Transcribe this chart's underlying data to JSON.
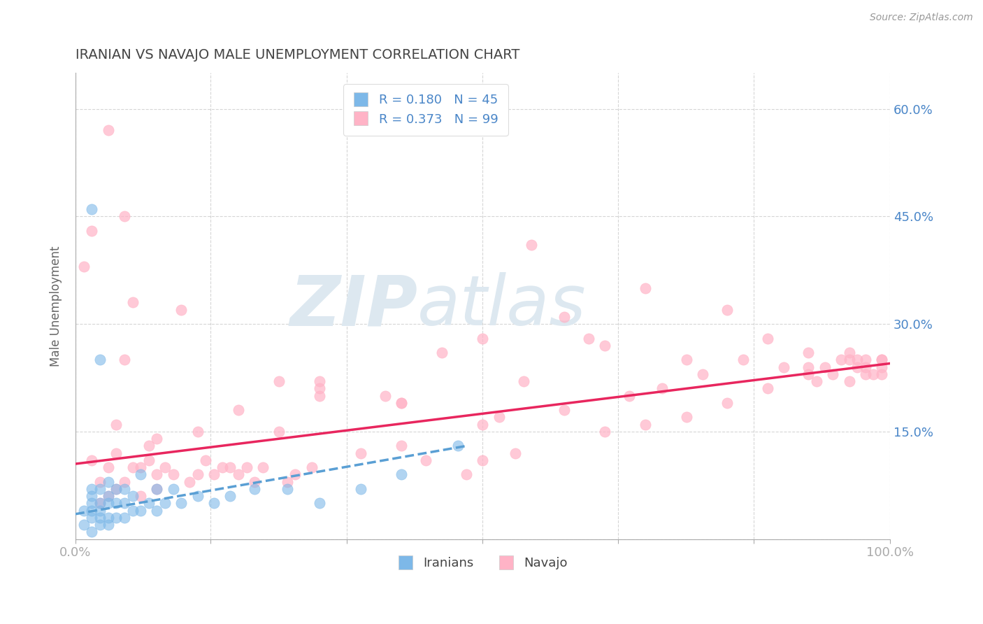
{
  "title": "IRANIAN VS NAVAJO MALE UNEMPLOYMENT CORRELATION CHART",
  "source_text": "Source: ZipAtlas.com",
  "ylabel": "Male Unemployment",
  "legend_R": [
    0.18,
    0.373
  ],
  "legend_N": [
    45,
    99
  ],
  "xlim": [
    0.0,
    1.0
  ],
  "ylim": [
    0.0,
    0.65
  ],
  "yticks": [
    0.0,
    0.15,
    0.3,
    0.45,
    0.6
  ],
  "ytick_labels_right": [
    "",
    "15.0%",
    "30.0%",
    "45.0%",
    "60.0%"
  ],
  "xticks": [
    0.0,
    0.166,
    0.333,
    0.5,
    0.666,
    0.833,
    1.0
  ],
  "xtick_left_label": "0.0%",
  "xtick_right_label": "100.0%",
  "background_color": "#ffffff",
  "grid_color": "#cccccc",
  "title_color": "#444444",
  "axis_label_color": "#666666",
  "tick_label_color": "#4a86c8",
  "iranian_color": "#7db8e8",
  "navajo_color": "#ffb3c6",
  "iranian_line_color": "#5a9fd4",
  "navajo_line_color": "#e8265e",
  "watermark_color": "#dde8f0",
  "watermark_text": "ZIPAtlas",
  "iranian_x": [
    0.01,
    0.01,
    0.02,
    0.02,
    0.02,
    0.02,
    0.02,
    0.02,
    0.03,
    0.03,
    0.03,
    0.03,
    0.03,
    0.04,
    0.04,
    0.04,
    0.04,
    0.04,
    0.05,
    0.05,
    0.05,
    0.06,
    0.06,
    0.06,
    0.07,
    0.07,
    0.08,
    0.08,
    0.09,
    0.1,
    0.1,
    0.11,
    0.12,
    0.13,
    0.15,
    0.17,
    0.19,
    0.22,
    0.26,
    0.3,
    0.35,
    0.4,
    0.47,
    0.02,
    0.03
  ],
  "iranian_y": [
    0.02,
    0.04,
    0.01,
    0.03,
    0.04,
    0.05,
    0.06,
    0.07,
    0.02,
    0.03,
    0.04,
    0.05,
    0.07,
    0.02,
    0.03,
    0.05,
    0.06,
    0.08,
    0.03,
    0.05,
    0.07,
    0.03,
    0.05,
    0.07,
    0.04,
    0.06,
    0.04,
    0.09,
    0.05,
    0.04,
    0.07,
    0.05,
    0.07,
    0.05,
    0.06,
    0.05,
    0.06,
    0.07,
    0.07,
    0.05,
    0.07,
    0.09,
    0.13,
    0.46,
    0.25
  ],
  "navajo_x": [
    0.01,
    0.02,
    0.02,
    0.03,
    0.03,
    0.04,
    0.04,
    0.05,
    0.05,
    0.06,
    0.06,
    0.07,
    0.07,
    0.08,
    0.08,
    0.09,
    0.09,
    0.1,
    0.1,
    0.11,
    0.12,
    0.13,
    0.14,
    0.15,
    0.16,
    0.17,
    0.18,
    0.19,
    0.2,
    0.21,
    0.22,
    0.23,
    0.25,
    0.26,
    0.27,
    0.29,
    0.3,
    0.35,
    0.38,
    0.4,
    0.43,
    0.45,
    0.48,
    0.5,
    0.52,
    0.54,
    0.56,
    0.6,
    0.63,
    0.65,
    0.68,
    0.7,
    0.72,
    0.75,
    0.77,
    0.8,
    0.82,
    0.85,
    0.87,
    0.9,
    0.91,
    0.92,
    0.93,
    0.94,
    0.95,
    0.96,
    0.97,
    0.97,
    0.98,
    0.99,
    0.99,
    0.99,
    0.99,
    0.04,
    0.05,
    0.06,
    0.25,
    0.3,
    0.4,
    0.5,
    0.6,
    0.7,
    0.8,
    0.9,
    0.95,
    0.96,
    0.97,
    0.1,
    0.15,
    0.2,
    0.3,
    0.4,
    0.55,
    0.65,
    0.75,
    0.85,
    0.9,
    0.95,
    0.5
  ],
  "navajo_y": [
    0.38,
    0.11,
    0.43,
    0.05,
    0.08,
    0.06,
    0.1,
    0.12,
    0.07,
    0.08,
    0.45,
    0.1,
    0.33,
    0.06,
    0.1,
    0.11,
    0.13,
    0.07,
    0.09,
    0.1,
    0.09,
    0.32,
    0.08,
    0.09,
    0.11,
    0.09,
    0.1,
    0.1,
    0.09,
    0.1,
    0.08,
    0.1,
    0.22,
    0.08,
    0.09,
    0.1,
    0.22,
    0.12,
    0.2,
    0.13,
    0.11,
    0.26,
    0.09,
    0.11,
    0.17,
    0.12,
    0.41,
    0.18,
    0.28,
    0.15,
    0.2,
    0.16,
    0.21,
    0.17,
    0.23,
    0.19,
    0.25,
    0.21,
    0.24,
    0.23,
    0.22,
    0.24,
    0.23,
    0.25,
    0.22,
    0.24,
    0.23,
    0.25,
    0.23,
    0.24,
    0.25,
    0.23,
    0.25,
    0.57,
    0.16,
    0.25,
    0.15,
    0.2,
    0.19,
    0.16,
    0.31,
    0.35,
    0.32,
    0.24,
    0.26,
    0.25,
    0.24,
    0.14,
    0.15,
    0.18,
    0.21,
    0.19,
    0.22,
    0.27,
    0.25,
    0.28,
    0.26,
    0.25,
    0.28
  ],
  "navajo_line_x0": 0.0,
  "navajo_line_y0": 0.105,
  "navajo_line_x1": 1.0,
  "navajo_line_y1": 0.245,
  "iranian_line_x0": 0.0,
  "iranian_line_y0": 0.035,
  "iranian_line_x1": 0.48,
  "iranian_line_y1": 0.13
}
